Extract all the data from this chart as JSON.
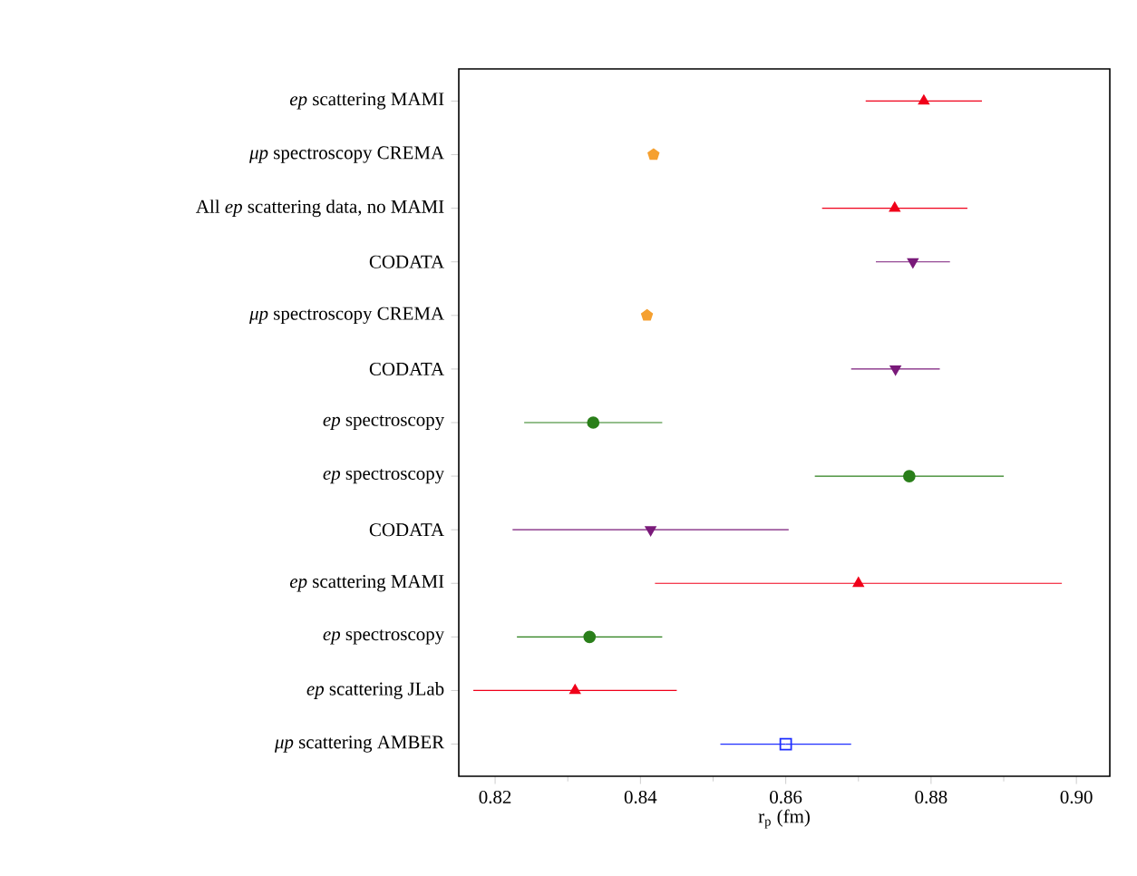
{
  "chart_data": {
    "type": "scatter",
    "orientation": "horizontal",
    "xlabel": "r$_{p}$ (fm)",
    "categories": [
      "*ep* scattering MAMI",
      "*μp* spectroscopy CREMA",
      "All *ep* scattering data, no MAMI",
      "CODATA",
      "*μp* spectroscopy CREMA",
      "CODATA",
      "*ep* spectroscopy",
      "*ep* spectroscopy",
      "CODATA",
      "*ep* scattering MAMI",
      "*ep* spectroscopy",
      "*ep* scattering JLab",
      "*μp* scattering AMBER"
    ],
    "series": [
      {
        "color": "#f0001a",
        "marker": "triangle",
        "values": [
          0.879,
          null,
          0.875,
          null,
          null,
          null,
          null,
          null,
          null,
          0.87,
          null,
          0.831,
          null
        ],
        "errors": [
          0.008,
          null,
          0.01,
          null,
          null,
          null,
          null,
          null,
          null,
          0.028,
          null,
          0.014,
          null
        ]
      },
      {
        "color": "#f5a030",
        "values": [
          null,
          0.8418,
          null,
          null,
          0.8409,
          null,
          null,
          null,
          null,
          null,
          null,
          null,
          null
        ]
      },
      {
        "color": "#7a1a7a",
        "marker": "triangle down",
        "values": [
          null,
          null,
          null,
          0.8775,
          null,
          0.8751,
          null,
          null,
          0.8414,
          null,
          null,
          null,
          null
        ],
        "errors": [
          null,
          null,
          null,
          0.0051,
          null,
          0.0061,
          null,
          null,
          0.019,
          null,
          null,
          null,
          null
        ]
      },
      {
        "color": "#2a7f1a",
        "marker": "circle",
        "values": [
          null,
          null,
          null,
          null,
          null,
          null,
          0.8335,
          0.877,
          null,
          null,
          0.833,
          null,
          null
        ],
        "errors": [
          null,
          null,
          null,
          null,
          null,
          null,
          0.0095,
          0.013,
          null,
          null,
          0.01,
          null,
          null
        ]
      },
      {
        "color": "#1f2fff",
        "marker": "square",
        "values": [
          null,
          null,
          null,
          null,
          null,
          null,
          null,
          null,
          null,
          null,
          null,
          null,
          0.86
        ],
        "errors": [
          null,
          null,
          null,
          null,
          null,
          null,
          null,
          null,
          null,
          null,
          null,
          null,
          0.009
        ]
      }
    ],
    "xlim": [
      0.815,
      0.9046
    ],
    "xticks": [
      0.82,
      0.84,
      0.86,
      0.88,
      {
        "value": 0.9,
        "label": "0.90"
      }
    ]
  }
}
